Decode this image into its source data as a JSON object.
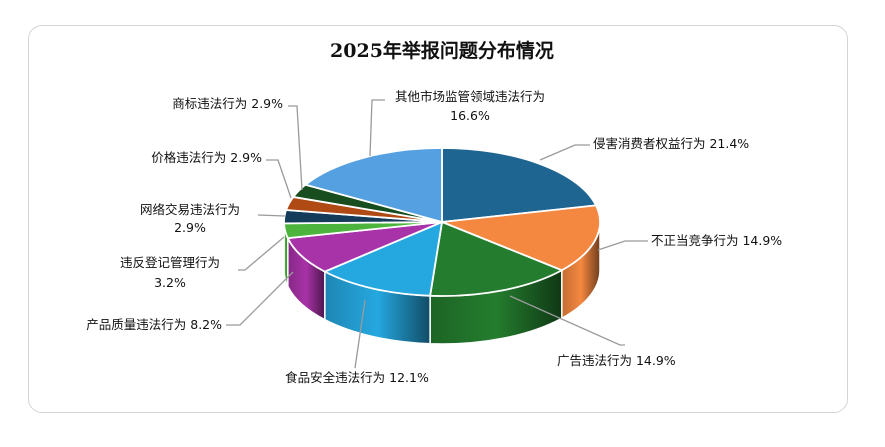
{
  "chart_data": {
    "type": "pie",
    "style": "3d",
    "title": "2025年举报问题分布情况",
    "start": "12 o'clock, clockwise",
    "slices": [
      {
        "label": "侵害消费者权益行为",
        "value": 21.4,
        "value_text": "21.4%",
        "color": "#1f6591"
      },
      {
        "label": "不正当竞争行为",
        "value": 14.9,
        "value_text": "14.9%",
        "color": "#f58840"
      },
      {
        "label": "广告违法行为",
        "value": 14.9,
        "value_text": "14.9%",
        "color": "#247d2e"
      },
      {
        "label": "食品安全违法行为",
        "value": 12.1,
        "value_text": "12.1%",
        "color": "#25a8e0"
      },
      {
        "label": "产品质量违法行为",
        "value": 8.2,
        "value_text": "8.2%",
        "color": "#a832a8"
      },
      {
        "label": "违反登记管理行为",
        "value": 3.2,
        "value_text": "3.2%",
        "color": "#4cb43c"
      },
      {
        "label": "网络交易违法行为",
        "value": 2.9,
        "value_text": "2.9%",
        "color": "#143c5a"
      },
      {
        "label": "价格违法行为",
        "value": 2.9,
        "value_text": "2.9%",
        "color": "#b04a14"
      },
      {
        "label": "商标违法行为",
        "value": 2.9,
        "value_text": "2.9%",
        "color": "#174d1f"
      },
      {
        "label": "其他市场监管领域违法行为",
        "value": 16.6,
        "value_text": "16.6%",
        "color": "#55a0e0"
      }
    ]
  }
}
